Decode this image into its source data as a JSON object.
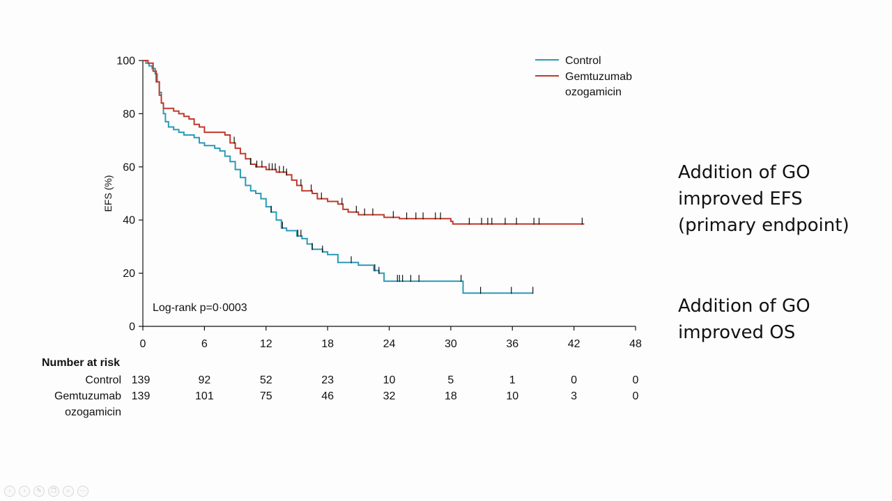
{
  "slide": {
    "notes": [
      "Addition of GO improved EFS (primary endpoint)",
      "Addition of GO improved OS"
    ]
  },
  "chart_data": {
    "type": "line",
    "subtype": "kaplan-meier step curves",
    "ylabel": "EFS (%)",
    "xlabel": "",
    "x_ticks": [
      0,
      6,
      12,
      18,
      24,
      30,
      36,
      42,
      48
    ],
    "y_ticks": [
      0,
      20,
      40,
      60,
      80,
      100
    ],
    "xlim": [
      0,
      48
    ],
    "ylim": [
      0,
      100
    ],
    "grid": false,
    "legend_position": "top-right",
    "annotation": "Log-rank p=0·0003",
    "series": [
      {
        "name": "Control",
        "color": "#2a9ab5",
        "points": [
          [
            0,
            100
          ],
          [
            0.3,
            99
          ],
          [
            0.6,
            98
          ],
          [
            0.9,
            97
          ],
          [
            1.2,
            95
          ],
          [
            1.4,
            92
          ],
          [
            1.6,
            88
          ],
          [
            1.8,
            84
          ],
          [
            2,
            80
          ],
          [
            2.2,
            77
          ],
          [
            2.5,
            75
          ],
          [
            3,
            74
          ],
          [
            3.5,
            73
          ],
          [
            4,
            72
          ],
          [
            5,
            71
          ],
          [
            5.5,
            69
          ],
          [
            6,
            68
          ],
          [
            7,
            67
          ],
          [
            7.5,
            66
          ],
          [
            8,
            64
          ],
          [
            8.5,
            62
          ],
          [
            9,
            59
          ],
          [
            9.5,
            56
          ],
          [
            10,
            53
          ],
          [
            10.5,
            51
          ],
          [
            11,
            50
          ],
          [
            11.5,
            48
          ],
          [
            12,
            45
          ],
          [
            12.5,
            43
          ],
          [
            13,
            40
          ],
          [
            13.5,
            37
          ],
          [
            14,
            36
          ],
          [
            15,
            34
          ],
          [
            15.5,
            33
          ],
          [
            16,
            31
          ],
          [
            16.5,
            29
          ],
          [
            17.5,
            28
          ],
          [
            18,
            27
          ],
          [
            19,
            24
          ],
          [
            20,
            24
          ],
          [
            21,
            23
          ],
          [
            22.5,
            21
          ],
          [
            23,
            20
          ],
          [
            23.5,
            17
          ],
          [
            24,
            17
          ],
          [
            31,
            17
          ],
          [
            31.2,
            12.5
          ],
          [
            38,
            12.5
          ]
        ],
        "censor_times": [
          12.5,
          13.6,
          15.1,
          15.4,
          16.5,
          17.5,
          20.3,
          22.6,
          23,
          24.8,
          25,
          25.3,
          26.1,
          26.9,
          31,
          32.9,
          35.9,
          38
        ]
      },
      {
        "name": "Gemtuzumab ozogamicin",
        "color": "#c0392b",
        "points": [
          [
            0,
            100
          ],
          [
            0.5,
            99
          ],
          [
            1,
            96
          ],
          [
            1.3,
            92
          ],
          [
            1.6,
            87
          ],
          [
            1.8,
            84
          ],
          [
            2,
            82
          ],
          [
            3,
            81
          ],
          [
            3.5,
            80
          ],
          [
            4,
            79
          ],
          [
            4.5,
            78
          ],
          [
            5,
            76
          ],
          [
            5.5,
            75
          ],
          [
            6,
            73
          ],
          [
            8,
            72
          ],
          [
            8.5,
            69
          ],
          [
            9,
            67
          ],
          [
            9.5,
            65
          ],
          [
            10,
            63
          ],
          [
            10.5,
            61
          ],
          [
            11,
            60
          ],
          [
            12,
            59
          ],
          [
            13,
            58
          ],
          [
            14,
            57
          ],
          [
            14.5,
            55
          ],
          [
            15,
            53
          ],
          [
            15.5,
            51
          ],
          [
            16.5,
            50
          ],
          [
            17,
            48
          ],
          [
            18,
            47
          ],
          [
            19,
            46
          ],
          [
            19.5,
            44
          ],
          [
            20,
            43
          ],
          [
            21,
            42
          ],
          [
            23,
            42
          ],
          [
            23.5,
            41
          ],
          [
            25,
            40.5
          ],
          [
            27,
            40.5
          ],
          [
            30,
            39.5
          ],
          [
            30.2,
            38.5
          ],
          [
            43,
            38.5
          ]
        ],
        "censor_times": [
          8.9,
          10.5,
          11.1,
          11.6,
          12.3,
          12.6,
          12.9,
          13.3,
          13.7,
          14,
          15.4,
          16.4,
          17.4,
          19.4,
          20.8,
          21.6,
          22.4,
          24.4,
          25.7,
          26.6,
          27.3,
          28.5,
          29,
          31.8,
          33,
          33.6,
          34,
          35.3,
          36.4,
          38.1,
          38.6,
          42.8
        ]
      }
    ],
    "risk_table": {
      "title": "Number at risk",
      "times": [
        0,
        6,
        12,
        18,
        24,
        30,
        36,
        42,
        48
      ],
      "rows": [
        {
          "label": "Control",
          "values": [
            "139",
            "92",
            "52",
            "23",
            "10",
            "5",
            "1",
            "0",
            "0"
          ]
        },
        {
          "label": "Gemtuzumab ozogamicin",
          "values": [
            "139",
            "101",
            "75",
            "46",
            "32",
            "18",
            "10",
            "3",
            "0"
          ]
        }
      ]
    }
  },
  "toolbar": {
    "icons": [
      "prev-icon",
      "next-icon",
      "pen-icon",
      "copy-icon",
      "zoom-icon",
      "more-icon"
    ],
    "glyphs": [
      "‹",
      "›",
      "✎",
      "❐",
      "⌕",
      "⋯"
    ]
  }
}
